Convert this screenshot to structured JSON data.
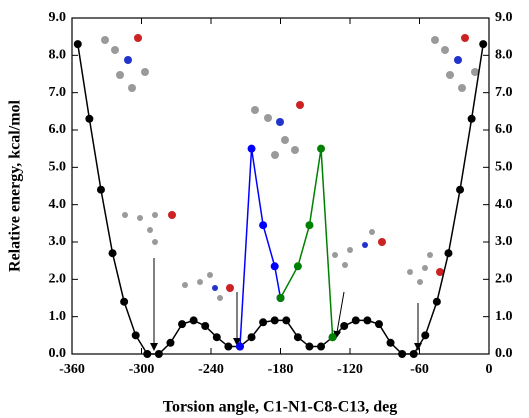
{
  "chart_data": {
    "type": "line",
    "xlabel": "Torsion angle, C1-N1-C8-C13, deg",
    "ylabel": "Relative energy, kcal/mol",
    "xlim": [
      -360,
      0
    ],
    "xticks": [
      -360,
      -300,
      -240,
      -180,
      -120,
      -60,
      0
    ],
    "ylim": [
      0,
      9
    ],
    "yticks": [
      {
        "value": 0,
        "label": "0.0"
      },
      {
        "value": 1,
        "label": "1.0"
      },
      {
        "value": 2,
        "label": "2.0"
      },
      {
        "value": 3,
        "label": "3.0"
      },
      {
        "value": 4,
        "label": "4.0"
      },
      {
        "value": 5,
        "label": "5.0"
      },
      {
        "value": 6,
        "label": "6.0"
      },
      {
        "value": 7,
        "label": "7.0"
      },
      {
        "value": 8,
        "label": "8.0"
      },
      {
        "value": 9,
        "label": "9.0"
      }
    ],
    "series": [
      {
        "color": "#000000",
        "x": [
          -355,
          -345,
          -335,
          -325,
          -315,
          -305,
          -295,
          -285,
          -275,
          -265,
          -255,
          -245,
          -235,
          -225,
          -215,
          -205,
          -195,
          -185,
          -175,
          -165,
          -155,
          -145,
          -135,
          -125,
          -115,
          -105,
          -95,
          -85,
          -75,
          -65,
          -55,
          -45,
          -35,
          -25,
          -15,
          -5
        ],
        "values": [
          8.3,
          6.3,
          4.4,
          2.7,
          1.4,
          0.5,
          0.0,
          0.0,
          0.3,
          0.8,
          0.9,
          0.75,
          0.45,
          0.2,
          0.2,
          0.45,
          0.85,
          0.9,
          0.9,
          0.45,
          0.2,
          0.2,
          0.45,
          0.75,
          0.9,
          0.9,
          0.8,
          0.3,
          0.0,
          0.0,
          0.5,
          1.4,
          2.7,
          4.4,
          6.3,
          8.3
        ]
      },
      {
        "color": "#0000ff",
        "x": [
          -215,
          -205,
          -195,
          -185,
          -180
        ],
        "values": [
          0.2,
          5.5,
          3.45,
          2.35,
          1.5
        ]
      },
      {
        "color": "#008000",
        "x": [
          -180,
          -165,
          -155,
          -145,
          -135
        ],
        "values": [
          1.5,
          2.35,
          3.45,
          5.5,
          0.45
        ]
      }
    ]
  }
}
